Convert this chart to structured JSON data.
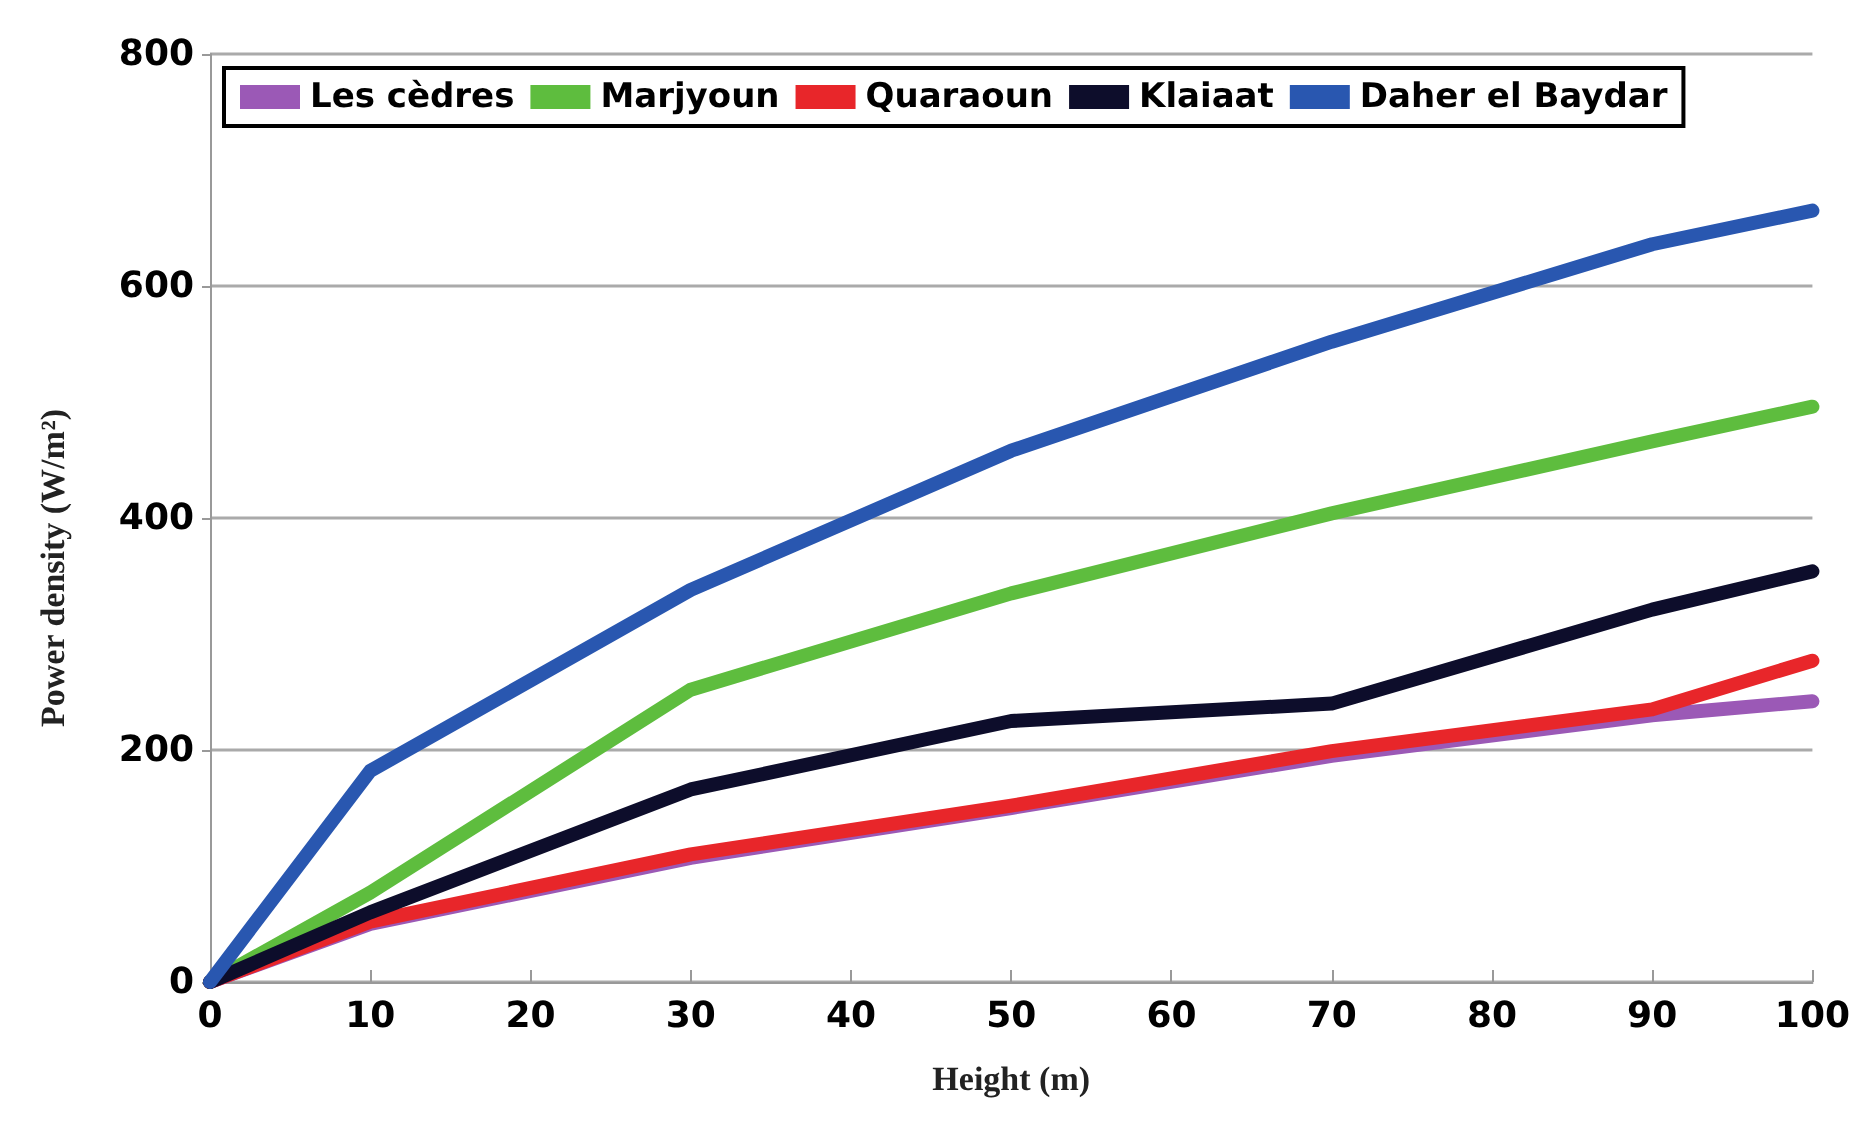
{
  "chart_data": {
    "type": "line",
    "xlabel": "Height (m)",
    "ylabel": "Power density (W/m²)",
    "x": [
      0,
      10,
      30,
      50,
      70,
      90,
      100
    ],
    "series": [
      {
        "name": "Les cèdres",
        "color": "#9b59b6",
        "values": [
          0,
          50,
          107,
          150,
          195,
          230,
          242
        ]
      },
      {
        "name": "Marjyoun",
        "color": "#5ebd3e",
        "values": [
          0,
          77,
          252,
          335,
          404,
          466,
          496
        ]
      },
      {
        "name": "Quaraoun",
        "color": "#e8262a",
        "values": [
          0,
          52,
          110,
          152,
          199,
          235,
          277
        ]
      },
      {
        "name": "Klaiaat",
        "color": "#0d0d2b",
        "values": [
          0,
          60,
          166,
          225,
          240,
          321,
          354
        ]
      },
      {
        "name": "Daher el Baydar",
        "color": "#2957b0",
        "values": [
          0,
          182,
          338,
          458,
          552,
          636,
          665
        ]
      }
    ],
    "xlim": [
      0,
      100
    ],
    "xticks": [
      0,
      10,
      20,
      30,
      40,
      50,
      60,
      70,
      80,
      90,
      100
    ],
    "ylim": [
      0,
      800
    ],
    "yticks": [
      0,
      200,
      400,
      600,
      800
    ],
    "grid": "y",
    "legend": "top",
    "marker": "none",
    "line_style": "solid"
  }
}
